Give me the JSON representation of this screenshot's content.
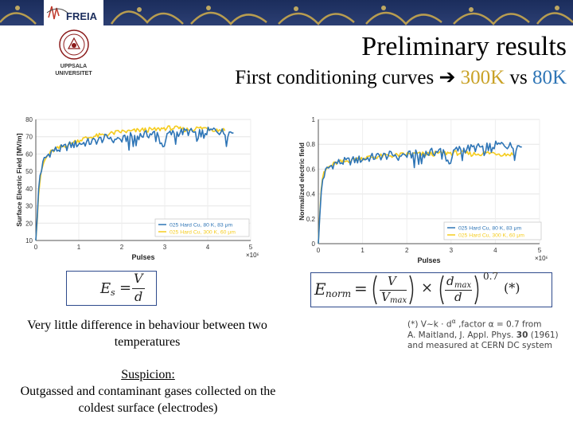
{
  "header": {
    "title": "Preliminary results",
    "subtitle_prefix": "First conditioning curves",
    "subtitle_300k": "300K",
    "subtitle_vs": "vs",
    "subtitle_80k": "80K"
  },
  "logos": {
    "freia_text": "FREIA",
    "uppsala_line1": "UPPSALA",
    "uppsala_line2": "UNIVERSITET"
  },
  "colors": {
    "series_80k": "#2e75b6",
    "series_300k": "#f5cc1e",
    "accent_300k": "#c9a227",
    "formula_border": "#2e4a8c"
  },
  "chart_data": [
    {
      "type": "line",
      "ylabel": "Surface Electric Field [MV/m]",
      "xlabel": "Pulses",
      "x_scale_label": "×10⁸",
      "xlim": [
        0,
        5
      ],
      "ylim": [
        10,
        80
      ],
      "xticks": [
        "0",
        "1",
        "2",
        "3",
        "4",
        "5"
      ],
      "yticks": [
        "10",
        "20",
        "30",
        "40",
        "50",
        "60",
        "70",
        "80"
      ],
      "legend": [
        "025 Hard Cu, 80 K, 83 μm",
        "025 Hard Cu, 300 K, 60 μm"
      ],
      "series": [
        {
          "name": "025 Hard Cu, 80 K, 83 μm",
          "color": "blue",
          "x": [
            0,
            0.03,
            0.06,
            0.1,
            0.15,
            0.2,
            0.3,
            0.4,
            0.6,
            0.8,
            1.0,
            1.3,
            1.6,
            1.8,
            2.0,
            2.2,
            2.5,
            2.8,
            3.0,
            3.2,
            3.5,
            3.8,
            4.0,
            4.2,
            4.4,
            4.6
          ],
          "y": [
            10,
            22,
            38,
            48,
            53,
            57,
            60,
            62,
            63,
            65,
            66,
            67,
            69,
            70,
            68,
            70,
            71,
            72,
            71,
            72,
            73,
            72,
            73,
            74,
            72,
            73
          ]
        },
        {
          "name": "025 Hard Cu, 300 K, 60 μm",
          "color": "yellow",
          "x": [
            0,
            0.03,
            0.06,
            0.1,
            0.15,
            0.2,
            0.3,
            0.4,
            0.6,
            0.8,
            1.0,
            1.3,
            1.6,
            1.8,
            2.0,
            2.2,
            2.5,
            2.8,
            3.0,
            3.2,
            3.5,
            3.8,
            4.0,
            4.2,
            4.4
          ],
          "y": [
            10,
            20,
            35,
            45,
            52,
            56,
            60,
            62,
            64,
            66,
            68,
            70,
            71,
            72,
            73,
            73,
            74,
            74,
            75,
            75,
            74,
            75,
            75,
            74,
            74
          ]
        }
      ]
    },
    {
      "type": "line",
      "ylabel": "Normalized electric field",
      "xlabel": "Pulses",
      "x_scale_label": "×10⁸",
      "xlim": [
        0,
        5
      ],
      "ylim": [
        0,
        1
      ],
      "xticks": [
        "0",
        "1",
        "2",
        "3",
        "4",
        "5"
      ],
      "yticks": [
        "0",
        "0.2",
        "0.4",
        "0.6",
        "0.8",
        "1"
      ],
      "legend": [
        "025 Hard Cu, 80 K, 83 μm",
        "025 Hard Cu, 300 K, 60 μm"
      ],
      "series": [
        {
          "name": "025 Hard Cu, 80 K, 83 μm",
          "color": "blue",
          "x": [
            0,
            0.03,
            0.06,
            0.1,
            0.15,
            0.2,
            0.3,
            0.4,
            0.6,
            0.8,
            1.0,
            1.3,
            1.6,
            1.8,
            2.0,
            2.2,
            2.5,
            2.8,
            3.0,
            3.2,
            3.5,
            3.8,
            4.0,
            4.2,
            4.4,
            4.6
          ],
          "y": [
            0,
            0.2,
            0.4,
            0.52,
            0.57,
            0.6,
            0.63,
            0.65,
            0.66,
            0.67,
            0.68,
            0.7,
            0.71,
            0.72,
            0.71,
            0.72,
            0.73,
            0.75,
            0.74,
            0.76,
            0.77,
            0.78,
            0.79,
            0.8,
            0.78,
            0.79
          ]
        },
        {
          "name": "025 Hard Cu, 300 K, 60 μm",
          "color": "yellow",
          "x": [
            0,
            0.03,
            0.06,
            0.1,
            0.15,
            0.2,
            0.3,
            0.4,
            0.6,
            0.8,
            1.0,
            1.3,
            1.6,
            1.8,
            2.0,
            2.2,
            2.5,
            2.8,
            3.0,
            3.2,
            3.5,
            3.8,
            4.0,
            4.2,
            4.4
          ],
          "y": [
            0,
            0.22,
            0.42,
            0.54,
            0.58,
            0.61,
            0.63,
            0.65,
            0.66,
            0.68,
            0.69,
            0.7,
            0.71,
            0.71,
            0.72,
            0.72,
            0.72,
            0.73,
            0.73,
            0.73,
            0.72,
            0.73,
            0.73,
            0.72,
            0.72
          ]
        }
      ]
    }
  ],
  "formulas": {
    "es_lhs": "E",
    "es_sub": "s",
    "es_eq": "=",
    "es_num": "V",
    "es_den": "d",
    "norm_lhs": "E",
    "norm_sub": "norm",
    "norm_eq": "=",
    "norm_v": "V",
    "norm_vmax_v": "V",
    "norm_vmax_sub": "max",
    "norm_times": "×",
    "norm_d": "d",
    "norm_dmax_sub": "max",
    "norm_d2": "d",
    "norm_exp": "0.7",
    "norm_star": "(*)"
  },
  "text": {
    "para1": "Very little difference in behaviour between two temperatures",
    "suspicion_label": "Suspicion:",
    "suspicion_body": "Outgassed and contaminant gases collected on the coldest surface (electrodes)"
  },
  "footnote": {
    "line1_a": "(*) V~k · d",
    "line1_exp": "α",
    "line1_b": " ,factor α = 0.7 from",
    "line2_a": "A. Maitland, J. Appl. Phys. ",
    "line2_vol": "30",
    "line2_b": " (1961)",
    "line3": "and measured at CERN DC system"
  }
}
